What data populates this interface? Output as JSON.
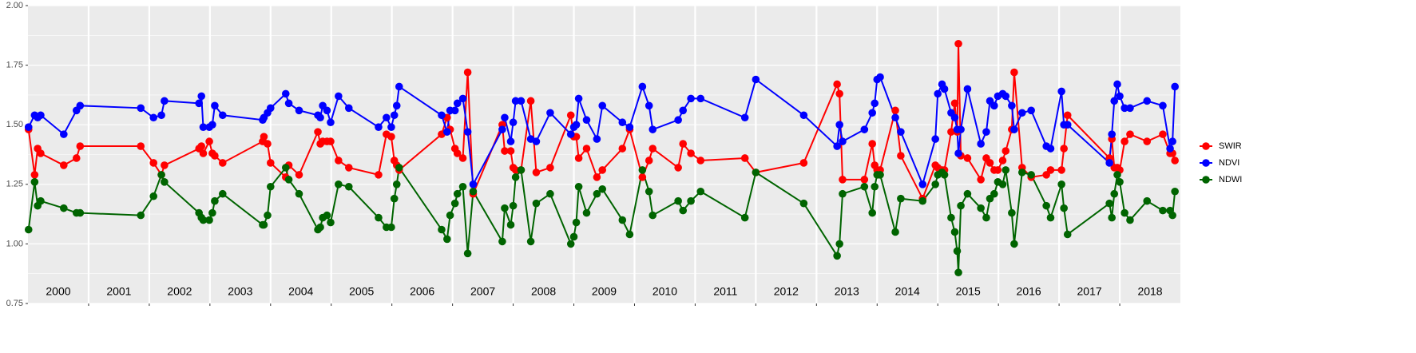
{
  "chart_data": {
    "type": "line",
    "x": [
      2000.01,
      2000.11,
      2000.16,
      2000.21,
      2000.59,
      2000.8,
      2000.86,
      2001.86,
      2002.07,
      2002.2,
      2002.25,
      2002.82,
      2002.86,
      2002.89,
      2002.99,
      2003.04,
      2003.08,
      2003.21,
      2003.87,
      2003.89,
      2003.95,
      2004.0,
      2004.25,
      2004.3,
      2004.47,
      2004.78,
      2004.82,
      2004.86,
      2004.93,
      2004.99,
      2005.12,
      2005.29,
      2005.78,
      2005.91,
      2005.99,
      2006.04,
      2006.08,
      2006.12,
      2006.82,
      2006.91,
      2006.96,
      2007.04,
      2007.08,
      2007.17,
      2007.25,
      2007.34,
      2007.82,
      2007.86,
      2007.96,
      2008.0,
      2008.04,
      2008.13,
      2008.29,
      2008.38,
      2008.61,
      2008.95,
      2009.0,
      2009.04,
      2009.08,
      2009.21,
      2009.38,
      2009.47,
      2009.8,
      2009.92,
      2010.13,
      2010.24,
      2010.3,
      2010.72,
      2010.8,
      2010.93,
      2011.09,
      2011.82,
      2012.0,
      2012.79,
      2013.34,
      2013.38,
      2013.43,
      2013.79,
      2013.92,
      2013.96,
      2014.0,
      2014.05,
      2014.3,
      2014.39,
      2014.75,
      2014.96,
      2015.0,
      2015.07,
      2015.11,
      2015.22,
      2015.28,
      2015.32,
      2015.34,
      2015.38,
      2015.49,
      2015.71,
      2015.8,
      2015.86,
      2015.93,
      2015.99,
      2016.07,
      2016.12,
      2016.22,
      2016.26,
      2016.39,
      2016.54,
      2016.79,
      2016.86,
      2017.04,
      2017.08,
      2017.14,
      2017.83,
      2017.87,
      2017.91,
      2017.96,
      2018.0,
      2018.08,
      2018.17,
      2018.45,
      2018.71,
      2018.83,
      2018.87,
      2018.91
    ],
    "series": [
      {
        "name": "SWIR",
        "color": "#ff0000",
        "values": [
          1.48,
          1.29,
          1.4,
          1.38,
          1.33,
          1.36,
          1.41,
          1.41,
          1.34,
          1.29,
          1.33,
          1.4,
          1.41,
          1.38,
          1.43,
          1.38,
          1.37,
          1.34,
          1.43,
          1.45,
          1.42,
          1.34,
          1.28,
          1.33,
          1.29,
          1.47,
          1.42,
          1.43,
          1.43,
          1.43,
          1.35,
          1.32,
          1.29,
          1.46,
          1.45,
          1.35,
          1.33,
          1.31,
          1.46,
          1.53,
          1.48,
          1.4,
          1.38,
          1.36,
          1.72,
          1.21,
          1.5,
          1.39,
          1.39,
          1.32,
          1.31,
          1.31,
          1.6,
          1.3,
          1.32,
          1.54,
          1.45,
          1.45,
          1.36,
          1.4,
          1.28,
          1.31,
          1.4,
          1.48,
          1.28,
          1.35,
          1.4,
          1.32,
          1.42,
          1.38,
          1.35,
          1.36,
          1.3,
          1.34,
          1.67,
          1.63,
          1.27,
          1.27,
          1.42,
          1.33,
          1.31,
          1.31,
          1.56,
          1.37,
          1.19,
          1.33,
          1.32,
          1.31,
          1.31,
          1.47,
          1.59,
          1.47,
          1.84,
          1.37,
          1.36,
          1.27,
          1.36,
          1.34,
          1.31,
          1.31,
          1.35,
          1.39,
          1.48,
          1.72,
          1.32,
          1.28,
          1.29,
          1.31,
          1.31,
          1.4,
          1.54,
          1.36,
          1.44,
          1.32,
          1.32,
          1.31,
          1.43,
          1.46,
          1.43,
          1.46,
          1.38,
          1.38,
          1.35
        ]
      },
      {
        "name": "NDVI",
        "color": "#0000ff",
        "values": [
          1.49,
          1.54,
          1.53,
          1.54,
          1.46,
          1.56,
          1.58,
          1.57,
          1.53,
          1.54,
          1.6,
          1.59,
          1.62,
          1.49,
          1.49,
          1.5,
          1.58,
          1.54,
          1.52,
          1.53,
          1.55,
          1.57,
          1.63,
          1.59,
          1.56,
          1.54,
          1.53,
          1.58,
          1.56,
          1.51,
          1.62,
          1.57,
          1.49,
          1.53,
          1.49,
          1.54,
          1.58,
          1.66,
          1.54,
          1.47,
          1.56,
          1.56,
          1.59,
          1.61,
          1.47,
          1.25,
          1.48,
          1.53,
          1.43,
          1.51,
          1.6,
          1.6,
          1.44,
          1.43,
          1.55,
          1.46,
          1.49,
          1.5,
          1.61,
          1.52,
          1.44,
          1.58,
          1.51,
          1.49,
          1.66,
          1.58,
          1.48,
          1.52,
          1.56,
          1.61,
          1.61,
          1.53,
          1.69,
          1.54,
          1.41,
          1.5,
          1.43,
          1.48,
          1.55,
          1.59,
          1.69,
          1.7,
          1.53,
          1.47,
          1.25,
          1.44,
          1.63,
          1.67,
          1.65,
          1.55,
          1.53,
          1.48,
          1.38,
          1.48,
          1.65,
          1.42,
          1.47,
          1.6,
          1.58,
          1.62,
          1.63,
          1.62,
          1.58,
          1.48,
          1.55,
          1.56,
          1.41,
          1.4,
          1.64,
          1.5,
          1.5,
          1.34,
          1.46,
          1.6,
          1.67,
          1.62,
          1.57,
          1.57,
          1.6,
          1.58,
          1.4,
          1.43,
          1.66
        ]
      },
      {
        "name": "NDWI",
        "color": "#006400",
        "values": [
          1.06,
          1.26,
          1.16,
          1.18,
          1.15,
          1.13,
          1.13,
          1.12,
          1.2,
          1.29,
          1.26,
          1.13,
          1.11,
          1.1,
          1.1,
          1.13,
          1.18,
          1.21,
          1.08,
          1.08,
          1.12,
          1.24,
          1.32,
          1.27,
          1.21,
          1.06,
          1.07,
          1.11,
          1.12,
          1.09,
          1.25,
          1.24,
          1.11,
          1.07,
          1.07,
          1.19,
          1.25,
          1.32,
          1.06,
          1.02,
          1.12,
          1.17,
          1.21,
          1.24,
          0.96,
          1.22,
          1.01,
          1.15,
          1.08,
          1.16,
          1.28,
          1.31,
          1.01,
          1.17,
          1.21,
          1.0,
          1.03,
          1.09,
          1.24,
          1.13,
          1.21,
          1.23,
          1.1,
          1.04,
          1.31,
          1.22,
          1.12,
          1.18,
          1.14,
          1.18,
          1.22,
          1.11,
          1.3,
          1.17,
          0.95,
          1.0,
          1.21,
          1.24,
          1.13,
          1.24,
          1.29,
          1.29,
          1.05,
          1.19,
          1.18,
          1.25,
          1.29,
          1.3,
          1.29,
          1.11,
          1.05,
          0.97,
          0.88,
          1.16,
          1.21,
          1.15,
          1.11,
          1.19,
          1.21,
          1.26,
          1.25,
          1.31,
          1.13,
          1.0,
          1.3,
          1.29,
          1.16,
          1.11,
          1.25,
          1.15,
          1.04,
          1.17,
          1.11,
          1.21,
          1.29,
          1.26,
          1.13,
          1.1,
          1.18,
          1.14,
          1.14,
          1.12,
          1.22
        ]
      }
    ],
    "xlim": [
      2000,
      2019
    ],
    "xticks": [
      2001,
      2002,
      2003,
      2004,
      2005,
      2006,
      2007,
      2008,
      2009,
      2010,
      2011,
      2012,
      2013,
      2014,
      2015,
      2016,
      2017,
      2018
    ],
    "year_labels": [
      "2000",
      "2001",
      "2002",
      "2003",
      "2004",
      "2005",
      "2006",
      "2007",
      "2008",
      "2009",
      "2010",
      "2011",
      "2012",
      "2013",
      "2014",
      "2015",
      "2016",
      "2017",
      "2018"
    ],
    "ylim": [
      0.75,
      2.0
    ],
    "yticks": [
      0.75,
      {
        "value": 1,
        "label": "1.00"
      },
      1.25,
      {
        "value": 1.5,
        "label": "1.50"
      },
      1.75,
      {
        "value": 2,
        "label": "2.00"
      }
    ],
    "grid": true,
    "legend": "right"
  }
}
